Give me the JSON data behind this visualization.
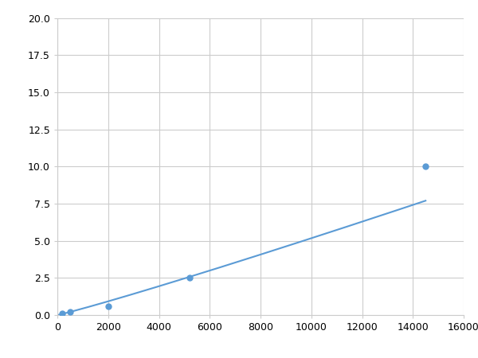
{
  "x": [
    200,
    500,
    2000,
    5200,
    14500
  ],
  "y": [
    0.1,
    0.2,
    0.6,
    2.5,
    10.0
  ],
  "line_color": "#5b9bd5",
  "marker_color": "#5b9bd5",
  "marker_size": 5,
  "marker_style": "o",
  "line_width": 1.5,
  "xlim": [
    0,
    16000
  ],
  "ylim": [
    0,
    20.0
  ],
  "xticks": [
    0,
    2000,
    4000,
    6000,
    8000,
    10000,
    12000,
    14000,
    16000
  ],
  "yticks": [
    0.0,
    2.5,
    5.0,
    7.5,
    10.0,
    12.5,
    15.0,
    17.5,
    20.0
  ],
  "grid_color": "#cccccc",
  "grid_linestyle": "-",
  "grid_linewidth": 0.8,
  "background_color": "#ffffff",
  "figure_background": "#ffffff"
}
